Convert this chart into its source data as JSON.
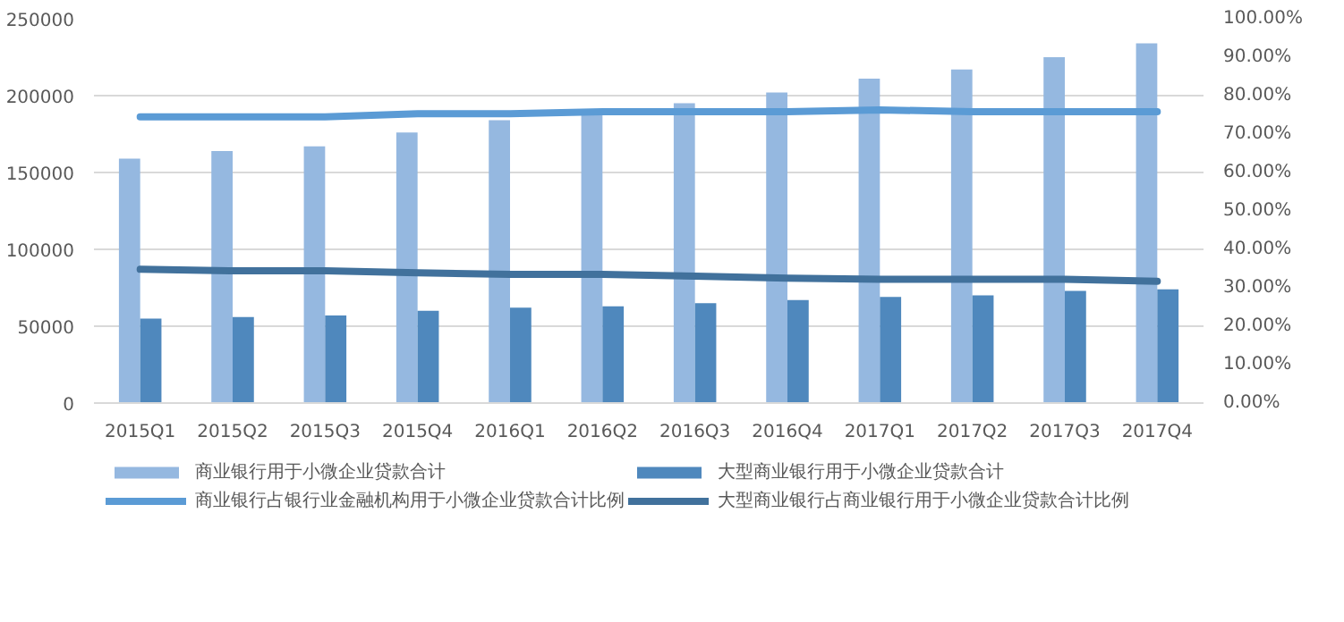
{
  "chart_data": {
    "type": "bar",
    "categories": [
      "2015Q1",
      "2015Q2",
      "2015Q3",
      "2015Q4",
      "2016Q1",
      "2016Q2",
      "2016Q3",
      "2016Q4",
      "2017Q1",
      "2017Q2",
      "2017Q3",
      "2017Q4"
    ],
    "series": [
      {
        "name": "商业银行用于小微企业贷款合计",
        "color": "#95b8e0",
        "values": [
          159000,
          164000,
          167000,
          176000,
          184000,
          189000,
          195000,
          202000,
          211000,
          217000,
          225000,
          234000
        ]
      },
      {
        "name": "大型商业银行用于小微企业贷款合计",
        "color": "#4f88bd",
        "values": [
          55000,
          56000,
          57000,
          60000,
          62000,
          63000,
          65000,
          67000,
          69000,
          70000,
          73000,
          74000
        ]
      },
      {
        "name": "商业银行占银行业金融机构用于小微企业贷款合计比例",
        "type": "line",
        "axis": "y2",
        "color": "#5b9bd5",
        "values": [
          74.5,
          74.5,
          74.5,
          75.3,
          75.3,
          75.8,
          75.8,
          75.8,
          76.3,
          75.8,
          75.8,
          75.8
        ]
      },
      {
        "name": "大型商业银行占商业银行用于小微企业贷款合计比例",
        "type": "line",
        "axis": "y2",
        "color": "#41719c",
        "values": [
          34.8,
          34.4,
          34.4,
          33.9,
          33.5,
          33.5,
          33.0,
          32.5,
          32.2,
          32.2,
          32.2,
          31.7
        ]
      }
    ],
    "ylim": [
      0,
      250000
    ],
    "yticks": [
      0,
      50000,
      100000,
      150000,
      200000,
      250000
    ],
    "y2lim": [
      0,
      100
    ],
    "y2ticks": [
      {
        "value": 0,
        "label": "0.00%"
      },
      {
        "value": 10,
        "label": "10.00%"
      },
      {
        "value": 20,
        "label": "20.00%"
      },
      {
        "value": 30,
        "label": "30.00%"
      },
      {
        "value": 40,
        "label": "40.00%"
      },
      {
        "value": 50,
        "label": "50.00%"
      },
      {
        "value": 60,
        "label": "60.00%"
      },
      {
        "value": 70,
        "label": "70.00%"
      },
      {
        "value": 80,
        "label": "80.00%"
      },
      {
        "value": 90,
        "label": "90.00%"
      },
      {
        "value": 100,
        "label": "100.00%"
      }
    ],
    "grid": "y",
    "legend": "bottom"
  }
}
